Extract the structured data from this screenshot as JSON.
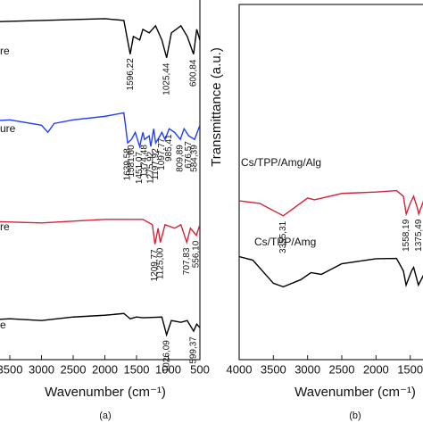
{
  "chart_data": [
    {
      "type": "line",
      "xlabel": "Wavenumber (cm⁻¹)",
      "caption": "(a)",
      "xlim": [
        4000,
        500
      ],
      "ylim": [
        0,
        100
      ],
      "xticks": [
        3500,
        3000,
        2500,
        2000,
        1500,
        1000,
        500
      ],
      "series": [
        {
          "name": "re",
          "color": "#000000",
          "x": [
            4000,
            3000,
            2000,
            1700,
            1600,
            1550,
            1450,
            1400,
            1300,
            1200,
            1100,
            1025,
            950,
            800,
            700,
            600,
            550,
            500
          ],
          "values": [
            95,
            95.5,
            96,
            95.5,
            86,
            91,
            90,
            93,
            92,
            94,
            90,
            85,
            92,
            94,
            91,
            86,
            93,
            90
          ],
          "peaks": [
            {
              "value": 1596.22,
              "label": "1596,22"
            },
            {
              "value": 1025.44,
              "label": "1025,44"
            },
            {
              "value": 600.84,
              "label": "600,84"
            }
          ]
        },
        {
          "name": "ure",
          "color": "#1f3fff",
          "x": [
            4000,
            3500,
            3000,
            2900,
            2800,
            2500,
            2000,
            1700,
            1640,
            1580,
            1520,
            1450,
            1400,
            1374,
            1300,
            1275,
            1230,
            1198,
            1130,
            1100,
            1050,
            985,
            900,
            809,
            750,
            676,
            584,
            500
          ],
          "values": [
            67,
            67.5,
            66,
            64,
            66.5,
            67.5,
            68.5,
            69.5,
            61,
            62,
            64,
            60,
            64,
            62,
            63,
            60,
            65,
            61,
            63,
            64,
            62,
            65,
            64,
            62,
            65,
            63,
            62,
            66
          ],
          "peaks": [
            {
              "value": 1639.58,
              "label": "1639,58"
            },
            {
              "value": 1581.6,
              "label": "1581,60"
            },
            {
              "value": 1451.07,
              "label": "1451,07"
            },
            {
              "value": 1374.48,
              "label": "1374,48"
            },
            {
              "value": 1275.92,
              "label": "1275,92"
            },
            {
              "value": 1197.92,
              "label": "1197,92"
            },
            {
              "value": 1097.77,
              "label": "1097,77"
            },
            {
              "value": 985.41,
              "label": "985,41"
            },
            {
              "value": 809.89,
              "label": "809,89"
            },
            {
              "value": 676.57,
              "label": "676,57"
            },
            {
              "value": 584.39,
              "label": "584,39"
            }
          ]
        },
        {
          "name": "re",
          "color": "#d0243a",
          "x": [
            4000,
            3000,
            2000,
            1400,
            1250,
            1209,
            1160,
            1125,
            1050,
            900,
            800,
            707,
            650,
            556,
            500
          ],
          "values": [
            39,
            38.5,
            39.5,
            39.5,
            38,
            32.5,
            37,
            33,
            38,
            37,
            38,
            33,
            37,
            35,
            38
          ],
          "peaks": [
            {
              "value": 1209.77,
              "label": "1209,77"
            },
            {
              "value": 1125.0,
              "label": "1125,00"
            },
            {
              "value": 707.83,
              "label": "707,83"
            },
            {
              "value": 556.1,
              "label": "556,10"
            }
          ]
        },
        {
          "name": "e",
          "color": "#000000",
          "x": [
            4000,
            3500,
            3000,
            2500,
            2000,
            1700,
            1600,
            1500,
            1400,
            1100,
            1026,
            950,
            800,
            700,
            599,
            550,
            500
          ],
          "values": [
            11,
            11.5,
            11,
            12,
            12.5,
            13,
            11.5,
            12,
            11.8,
            12,
            7,
            11,
            10.5,
            11,
            8,
            10,
            9
          ],
          "peaks": [
            {
              "value": 1026.09,
              "label": "1026,09"
            },
            {
              "value": 599.37,
              "label": "599,37"
            }
          ]
        }
      ]
    },
    {
      "type": "line",
      "xlabel": "Wavenumber (cm⁻¹)",
      "ylabel": "Transmittance (a.u.)",
      "caption": "(b)",
      "xlim": [
        4000,
        400
      ],
      "ylim": [
        0,
        100
      ],
      "xticks": [
        4000,
        3500,
        3000,
        2500,
        2000,
        1500
      ],
      "series": [
        {
          "name": "Cs/TPP/Amg/Alg",
          "color": "#d0243a",
          "x": [
            4000,
            3700,
            3355,
            3000,
            2900,
            2500,
            2000,
            1700,
            1600,
            1558,
            1500,
            1450,
            1400,
            1375,
            1300
          ],
          "values": [
            44.7,
            44,
            40.5,
            45.5,
            45,
            46.8,
            47.2,
            47.6,
            46,
            41,
            44,
            46,
            43,
            41,
            45
          ],
          "peaks": [
            {
              "value": 3355.31,
              "label": "3355,31"
            },
            {
              "value": 1558.19,
              "label": "1558,19"
            },
            {
              "value": 1375.49,
              "label": "1375,49"
            }
          ]
        },
        {
          "name": "Cs/TPP/Amg",
          "color": "#000000",
          "x": [
            4000,
            3800,
            3500,
            3355,
            3100,
            2950,
            2800,
            2500,
            2000,
            1700,
            1600,
            1560,
            1480,
            1450,
            1380,
            1300
          ],
          "values": [
            29,
            28,
            21.5,
            20.5,
            22.5,
            24.5,
            24,
            27,
            28.4,
            28.5,
            25,
            21,
            25,
            26,
            21,
            24
          ]
        }
      ]
    }
  ]
}
